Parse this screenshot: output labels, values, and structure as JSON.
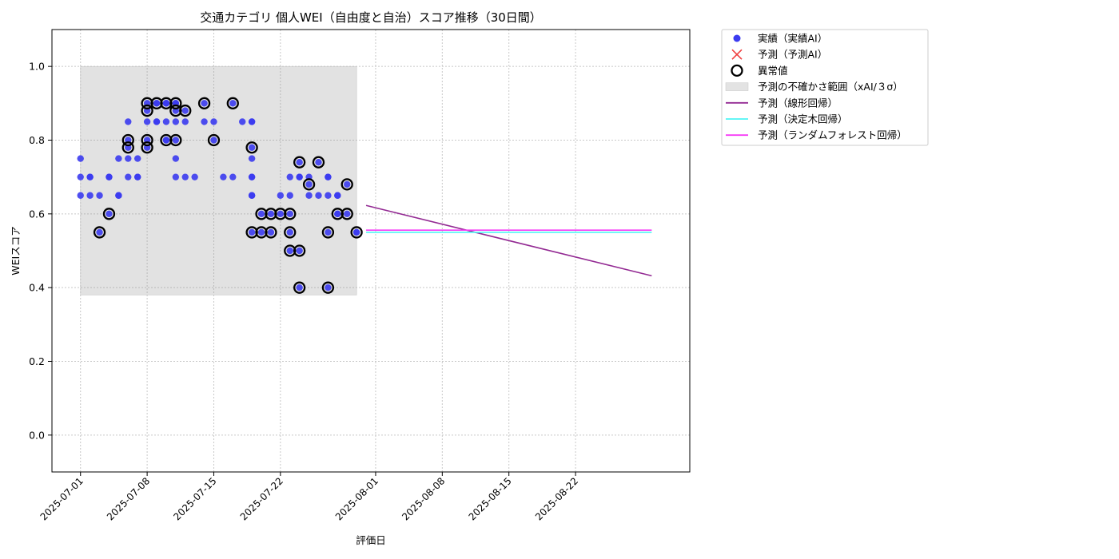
{
  "chart_data": {
    "type": "scatter",
    "title": "交通カテゴリ 個人WEI（自由度と自治）スコア推移（30日間）",
    "xlabel": "評価日",
    "ylabel": "WEIスコア",
    "xlim": [
      "2025-06-28",
      "2025-09-03"
    ],
    "ylim": [
      -0.1,
      1.1
    ],
    "x_ticks": [
      "2025-07-01",
      "2025-07-08",
      "2025-07-15",
      "2025-07-22",
      "2025-08-01",
      "2025-08-08",
      "2025-08-15",
      "2025-08-22"
    ],
    "y_ticks": [
      "0.0",
      "0.2",
      "0.4",
      "0.6",
      "0.8",
      "1.0"
    ],
    "grid": true,
    "legend_position": "outside-right",
    "legend": [
      {
        "label": "実績（実績AI）",
        "kind": "point",
        "color": "#3b3bf0"
      },
      {
        "label": "予測（予測AI）",
        "kind": "cross",
        "color": "#f04040"
      },
      {
        "label": "異常値",
        "kind": "ring",
        "color": "#000000"
      },
      {
        "label": "予測の不確かさ範囲（xAI/３σ）",
        "kind": "band",
        "color": "#e3e3e3"
      },
      {
        "label": "予測（線形回帰）",
        "kind": "line",
        "color": "#932a93"
      },
      {
        "label": "予測（決定木回帰）",
        "kind": "line",
        "color": "#4ef5f5"
      },
      {
        "label": "予測（ランダムフォレスト回帰）",
        "kind": "line",
        "color": "#f53af5"
      }
    ],
    "uncertainty_band": {
      "x_start": "2025-07-01",
      "x_end": "2025-07-30",
      "y_low": 0.38,
      "y_high": 1.0
    },
    "series": [
      {
        "name": "実績（実績AI）",
        "color": "#3b3bf0",
        "points": [
          [
            "2025-07-01",
            0.7
          ],
          [
            "2025-07-01",
            0.65
          ],
          [
            "2025-07-01",
            0.75
          ],
          [
            "2025-07-02",
            0.7
          ],
          [
            "2025-07-02",
            0.65
          ],
          [
            "2025-07-02",
            0.7
          ],
          [
            "2025-07-03",
            0.55
          ],
          [
            "2025-07-03",
            0.65
          ],
          [
            "2025-07-04",
            0.7
          ],
          [
            "2025-07-04",
            0.7
          ],
          [
            "2025-07-04",
            0.6
          ],
          [
            "2025-07-05",
            0.65
          ],
          [
            "2025-07-05",
            0.75
          ],
          [
            "2025-07-05",
            0.65
          ],
          [
            "2025-07-06",
            0.7
          ],
          [
            "2025-07-06",
            0.75
          ],
          [
            "2025-07-06",
            0.78
          ],
          [
            "2025-07-06",
            0.8
          ],
          [
            "2025-07-06",
            0.85
          ],
          [
            "2025-07-07",
            0.7
          ],
          [
            "2025-07-07",
            0.7
          ],
          [
            "2025-07-07",
            0.75
          ],
          [
            "2025-07-08",
            0.85
          ],
          [
            "2025-07-08",
            0.9
          ],
          [
            "2025-07-08",
            0.8
          ],
          [
            "2025-07-08",
            0.78
          ],
          [
            "2025-07-08",
            0.88
          ],
          [
            "2025-07-09",
            0.9
          ],
          [
            "2025-07-09",
            0.85
          ],
          [
            "2025-07-09",
            0.9
          ],
          [
            "2025-07-09",
            0.85
          ],
          [
            "2025-07-10",
            0.8
          ],
          [
            "2025-07-10",
            0.9
          ],
          [
            "2025-07-10",
            0.9
          ],
          [
            "2025-07-10",
            0.85
          ],
          [
            "2025-07-10",
            0.8
          ],
          [
            "2025-07-10",
            0.9
          ],
          [
            "2025-07-11",
            0.7
          ],
          [
            "2025-07-11",
            0.75
          ],
          [
            "2025-07-11",
            0.8
          ],
          [
            "2025-07-11",
            0.88
          ],
          [
            "2025-07-11",
            0.9
          ],
          [
            "2025-07-11",
            0.9
          ],
          [
            "2025-07-11",
            0.85
          ],
          [
            "2025-07-12",
            0.85
          ],
          [
            "2025-07-12",
            0.88
          ],
          [
            "2025-07-12",
            0.7
          ],
          [
            "2025-07-13",
            0.7
          ],
          [
            "2025-07-14",
            0.9
          ],
          [
            "2025-07-14",
            0.85
          ],
          [
            "2025-07-15",
            0.8
          ],
          [
            "2025-07-15",
            0.85
          ],
          [
            "2025-07-16",
            0.7
          ],
          [
            "2025-07-17",
            0.9
          ],
          [
            "2025-07-17",
            0.7
          ],
          [
            "2025-07-18",
            0.85
          ],
          [
            "2025-07-19",
            0.85
          ],
          [
            "2025-07-19",
            0.78
          ],
          [
            "2025-07-19",
            0.75
          ],
          [
            "2025-07-19",
            0.7
          ],
          [
            "2025-07-19",
            0.65
          ],
          [
            "2025-07-19",
            0.55
          ],
          [
            "2025-07-19",
            0.65
          ],
          [
            "2025-07-19",
            0.7
          ],
          [
            "2025-07-19",
            0.85
          ],
          [
            "2025-07-20",
            0.6
          ],
          [
            "2025-07-20",
            0.55
          ],
          [
            "2025-07-21",
            0.6
          ],
          [
            "2025-07-21",
            0.55
          ],
          [
            "2025-07-22",
            0.65
          ],
          [
            "2025-07-22",
            0.6
          ],
          [
            "2025-07-23",
            0.7
          ],
          [
            "2025-07-23",
            0.65
          ],
          [
            "2025-07-23",
            0.6
          ],
          [
            "2025-07-23",
            0.55
          ],
          [
            "2025-07-23",
            0.5
          ],
          [
            "2025-07-24",
            0.4
          ],
          [
            "2025-07-24",
            0.5
          ],
          [
            "2025-07-24",
            0.74
          ],
          [
            "2025-07-24",
            0.7
          ],
          [
            "2025-07-24",
            0.7
          ],
          [
            "2025-07-25",
            0.68
          ],
          [
            "2025-07-25",
            0.65
          ],
          [
            "2025-07-25",
            0.7
          ],
          [
            "2025-07-26",
            0.74
          ],
          [
            "2025-07-26",
            0.65
          ],
          [
            "2025-07-27",
            0.7
          ],
          [
            "2025-07-27",
            0.7
          ],
          [
            "2025-07-27",
            0.65
          ],
          [
            "2025-07-27",
            0.55
          ],
          [
            "2025-07-27",
            0.4
          ],
          [
            "2025-07-28",
            0.65
          ],
          [
            "2025-07-28",
            0.6
          ],
          [
            "2025-07-28",
            0.65
          ],
          [
            "2025-07-28",
            0.6
          ],
          [
            "2025-07-29",
            0.68
          ],
          [
            "2025-07-29",
            0.6
          ],
          [
            "2025-07-30",
            0.55
          ],
          [
            "2025-07-30",
            0.55
          ]
        ]
      },
      {
        "name": "異常値",
        "color": "#000000",
        "points": [
          [
            "2025-07-03",
            0.55
          ],
          [
            "2025-07-04",
            0.6
          ],
          [
            "2025-07-06",
            0.78
          ],
          [
            "2025-07-06",
            0.8
          ],
          [
            "2025-07-08",
            0.9
          ],
          [
            "2025-07-08",
            0.8
          ],
          [
            "2025-07-08",
            0.78
          ],
          [
            "2025-07-08",
            0.88
          ],
          [
            "2025-07-09",
            0.9
          ],
          [
            "2025-07-10",
            0.9
          ],
          [
            "2025-07-10",
            0.8
          ],
          [
            "2025-07-11",
            0.9
          ],
          [
            "2025-07-11",
            0.88
          ],
          [
            "2025-07-11",
            0.8
          ],
          [
            "2025-07-12",
            0.88
          ],
          [
            "2025-07-14",
            0.9
          ],
          [
            "2025-07-15",
            0.8
          ],
          [
            "2025-07-17",
            0.9
          ],
          [
            "2025-07-19",
            0.78
          ],
          [
            "2025-07-19",
            0.55
          ],
          [
            "2025-07-20",
            0.6
          ],
          [
            "2025-07-20",
            0.55
          ],
          [
            "2025-07-21",
            0.6
          ],
          [
            "2025-07-21",
            0.55
          ],
          [
            "2025-07-22",
            0.6
          ],
          [
            "2025-07-23",
            0.6
          ],
          [
            "2025-07-23",
            0.55
          ],
          [
            "2025-07-23",
            0.5
          ],
          [
            "2025-07-24",
            0.4
          ],
          [
            "2025-07-24",
            0.5
          ],
          [
            "2025-07-24",
            0.74
          ],
          [
            "2025-07-25",
            0.68
          ],
          [
            "2025-07-26",
            0.74
          ],
          [
            "2025-07-27",
            0.55
          ],
          [
            "2025-07-27",
            0.4
          ],
          [
            "2025-07-28",
            0.6
          ],
          [
            "2025-07-29",
            0.68
          ],
          [
            "2025-07-29",
            0.6
          ],
          [
            "2025-07-30",
            0.55
          ]
        ]
      },
      {
        "name": "予測（線形回帰）",
        "color": "#932a93",
        "line": [
          [
            "2025-07-31",
            0.623
          ],
          [
            "2025-08-30",
            0.432
          ]
        ]
      },
      {
        "name": "予測（決定木回帰）",
        "color": "#4ef5f5",
        "line": [
          [
            "2025-07-31",
            0.55
          ],
          [
            "2025-08-30",
            0.55
          ]
        ]
      },
      {
        "name": "予測（ランダムフォレスト回帰）",
        "color": "#f53af5",
        "line": [
          [
            "2025-07-31",
            0.556
          ],
          [
            "2025-08-30",
            0.556
          ]
        ]
      }
    ]
  }
}
